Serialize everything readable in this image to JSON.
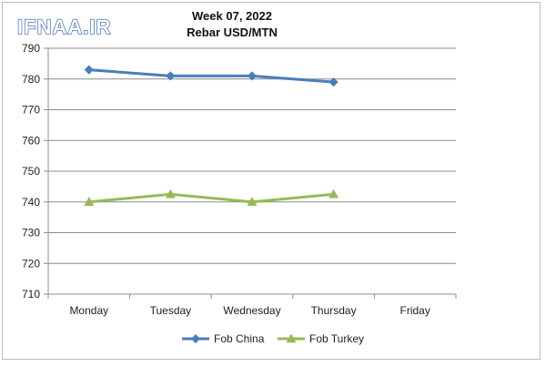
{
  "watermark": {
    "text": "IFNAA.IR",
    "fill_color": "#ffffff",
    "outline_color": "#2a5db0"
  },
  "chart_data": {
    "type": "line",
    "title": "Week 07, 2022",
    "subtitle": "Rebar USD/MTN",
    "categories": [
      "Monday",
      "Tuesday",
      "Wednesday",
      "Thursday",
      "Friday"
    ],
    "series": [
      {
        "name": "Fob China",
        "values": [
          783,
          781,
          781,
          779,
          null
        ],
        "color": "#4a7ebb",
        "marker": "diamond"
      },
      {
        "name": "Fob Turkey",
        "values": [
          740,
          742.5,
          740,
          742.5,
          null
        ],
        "color": "#98b954",
        "marker": "triangle"
      }
    ],
    "ylim": [
      710,
      790
    ],
    "yticks": [
      710,
      720,
      730,
      740,
      750,
      760,
      770,
      780,
      790
    ],
    "grid": true,
    "legend_position": "bottom",
    "gridline_color": "#8c8c8c",
    "axis_color": "#8c8c8c"
  }
}
